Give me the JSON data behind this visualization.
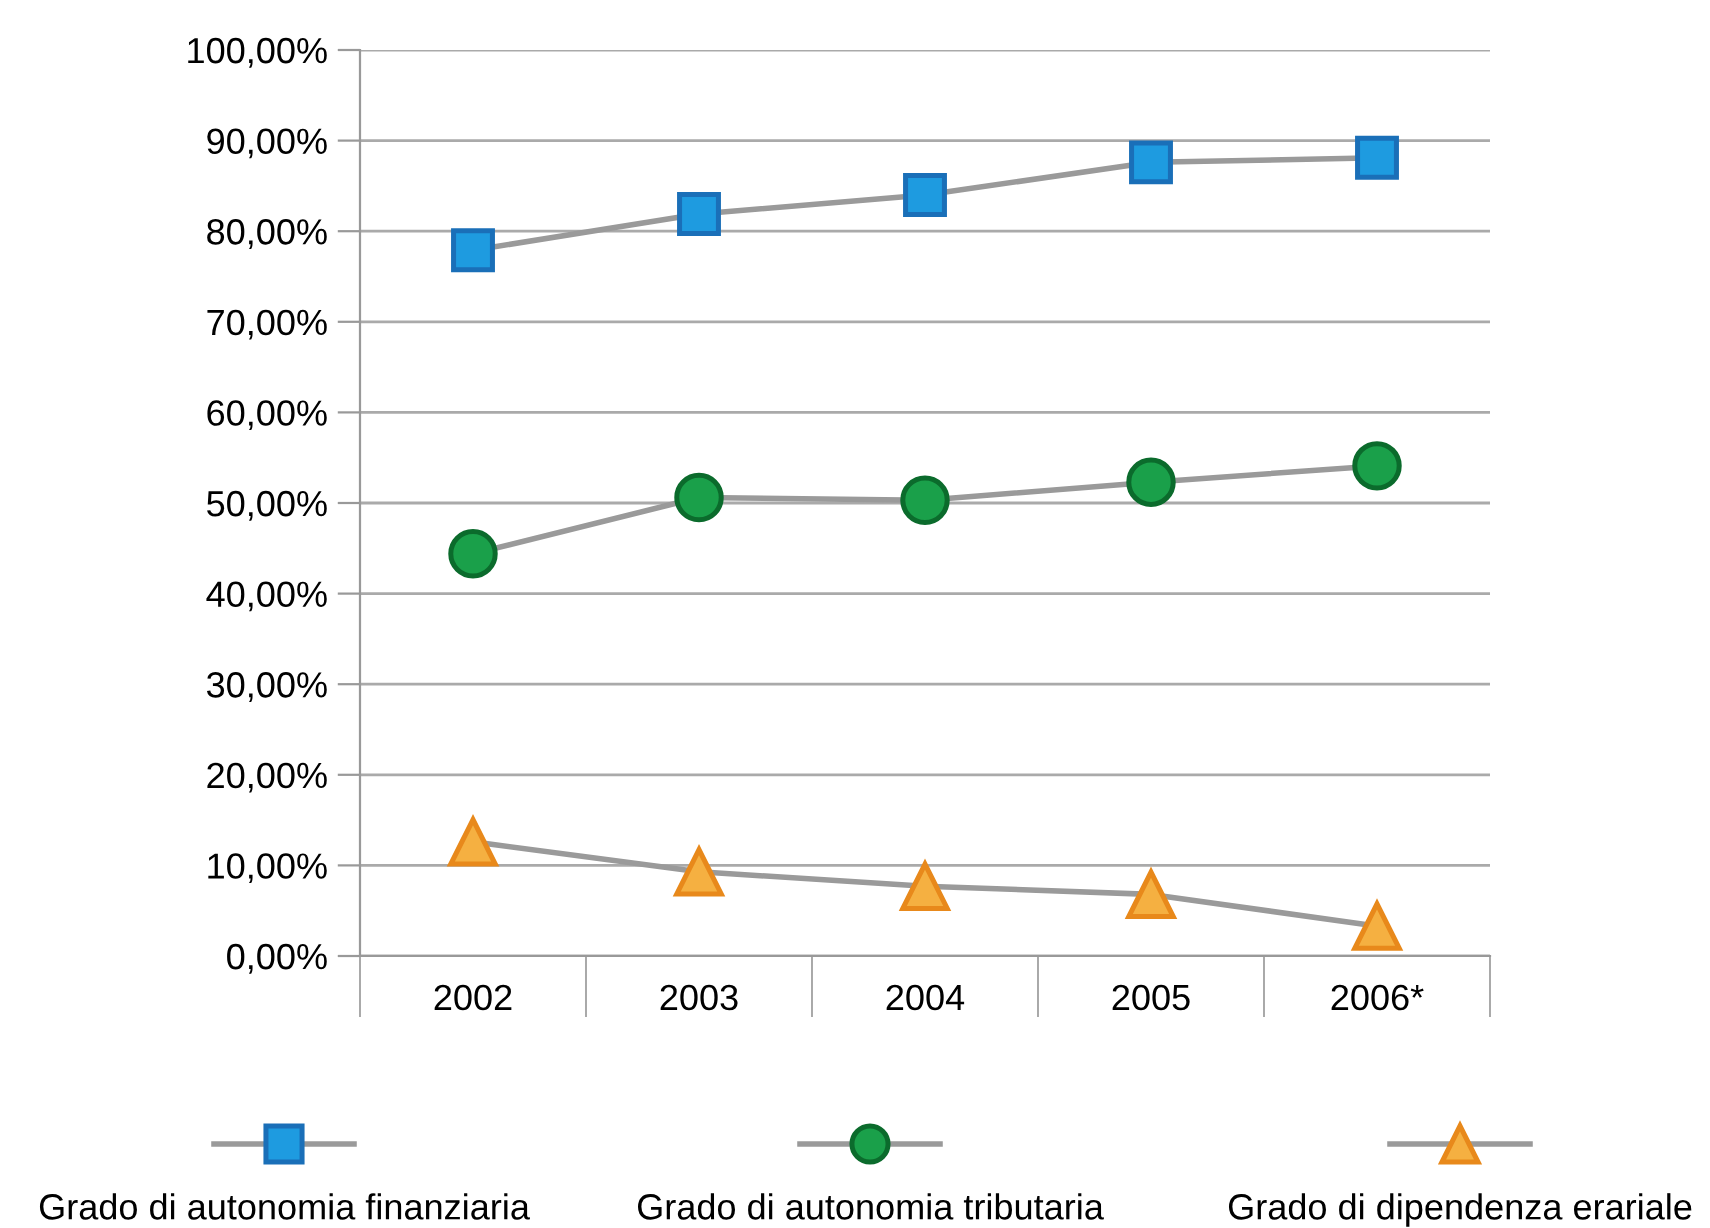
{
  "chart_data": {
    "type": "line",
    "categories": [
      "2002",
      "2003",
      "2004",
      "2005",
      "2006*"
    ],
    "series": [
      {
        "name": "Grado di autonomia finanziaria",
        "color": "#1e9be0",
        "marker": "square",
        "values": [
          77.9,
          81.9,
          84.0,
          87.6,
          88.1
        ]
      },
      {
        "name": "Grado di autonomia tributaria",
        "color": "#1aa04a",
        "marker": "circle",
        "values": [
          44.4,
          50.6,
          50.3,
          52.3,
          54.1
        ]
      },
      {
        "name": "Grado di dipendenza erariale",
        "color": "#f5b041",
        "marker": "triangle",
        "values": [
          12.6,
          9.3,
          7.7,
          6.8,
          3.3
        ]
      }
    ],
    "ylim": [
      0,
      100
    ],
    "yticks": [
      {
        "value": 0,
        "label": "0,00%"
      },
      {
        "value": 10,
        "label": "10,00%"
      },
      {
        "value": 20,
        "label": "20,00%"
      },
      {
        "value": 30,
        "label": "30,00%"
      },
      {
        "value": 40,
        "label": "40,00%"
      },
      {
        "value": 50,
        "label": "50,00%"
      },
      {
        "value": 60,
        "label": "60,00%"
      },
      {
        "value": 70,
        "label": "70,00%"
      },
      {
        "value": 80,
        "label": "80,00%"
      },
      {
        "value": 90,
        "label": "90,00%"
      },
      {
        "value": 100,
        "label": "100,00%"
      }
    ],
    "grid": "y",
    "legend": "bottom",
    "line_style": "solid"
  }
}
